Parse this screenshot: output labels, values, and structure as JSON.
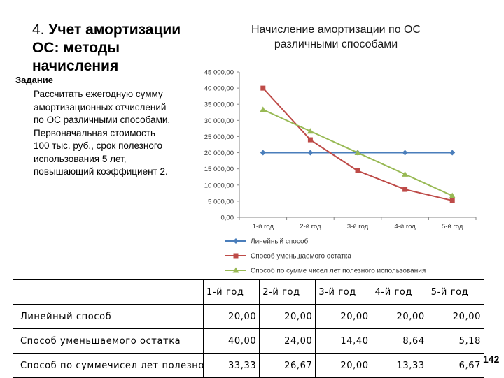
{
  "slide": {
    "title_number": "4.",
    "title_text": "Учет амортизации ОС: методы начисления",
    "task_heading": "Задание",
    "task_text": "Рассчитать ежегодную сумму амортизационных отчислений по ОС различными способами. Первоначальная стоимость 100 тыс. руб., срок полезного использования 5 лет, повышающий коэффициент 2.",
    "page_number": "142"
  },
  "chart_data": {
    "type": "line",
    "title_lines": [
      "Начисление амортизации по ОС",
      "различными способами"
    ],
    "categories": [
      "1-й год",
      "2-й год",
      "3-й год",
      "4-й год",
      "5-й год"
    ],
    "ylim": [
      0,
      45000
    ],
    "y_ticks": [
      0,
      5000,
      10000,
      15000,
      20000,
      25000,
      30000,
      35000,
      40000,
      45000
    ],
    "y_tick_labels": [
      "0,00",
      "5 000,00",
      "10 000,00",
      "15 000,00",
      "20 000,00",
      "25 000,00",
      "30 000,00",
      "35 000,00",
      "40 000,00",
      "45 000,00"
    ],
    "grid": false,
    "legend_position": "bottom",
    "series": [
      {
        "name": "Линейный способ",
        "values": [
          20000,
          20000,
          20000,
          20000,
          20000
        ],
        "color": "#4A7EBB",
        "marker": "diamond"
      },
      {
        "name": "Способ уменьшаемого остатка",
        "values": [
          40000,
          24000,
          14400,
          8640,
          5184
        ],
        "color": "#BE4B48",
        "marker": "square"
      },
      {
        "name": "Способ по сумме чисел лет полезного использования",
        "values": [
          33333,
          26667,
          20000,
          13333,
          6667
        ],
        "color": "#98B954",
        "marker": "triangle"
      }
    ]
  },
  "table": {
    "headers": [
      "",
      "1-й год",
      "2-й год",
      "3-й год",
      "4-й год",
      "5-й год"
    ],
    "rows": [
      {
        "label": "Линейный способ",
        "values": [
          "20,00",
          "20,00",
          "20,00",
          "20,00",
          "20,00"
        ]
      },
      {
        "label": "Способ уменьшаемого остатка",
        "values": [
          "40,00",
          "24,00",
          "14,40",
          "8,64",
          "5,18"
        ]
      },
      {
        "label": "Способ по суммечисел лет полезного использования",
        "values": [
          "33,33",
          "26,67",
          "20,00",
          "13,33",
          "6,67"
        ]
      }
    ]
  }
}
